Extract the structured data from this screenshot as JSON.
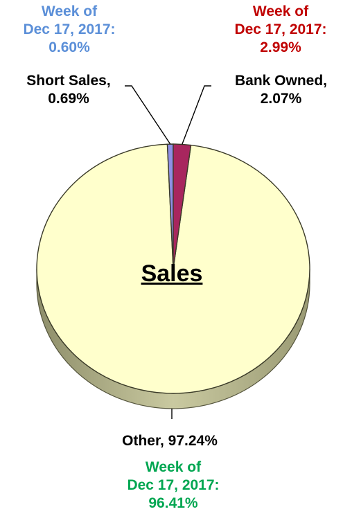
{
  "chart_data": {
    "type": "pie",
    "title": "Sales",
    "slices": [
      {
        "label": "Short Sales",
        "value": 0.69,
        "value_text": "0.69%",
        "color": "#8f8fe6",
        "week_label": "Week of",
        "week_date": "Dec 17, 2017:",
        "week_value": 0.6,
        "week_value_text": "0.60%",
        "week_color": "#5b8fd8"
      },
      {
        "label": "Bank Owned",
        "value": 2.07,
        "value_text": "2.07%",
        "color": "#a8265e",
        "week_label": "Week of",
        "week_date": "Dec 17, 2017:",
        "week_value": 2.99,
        "week_value_text": "2.99%",
        "week_color": "#c00000"
      },
      {
        "label": "Other",
        "value": 97.24,
        "value_text": "97.24%",
        "color": "#ffffcc",
        "week_label": "Week of",
        "week_date": "Dec 17, 2017:",
        "week_value": 96.41,
        "week_value_text": "96.41%",
        "week_color": "#00a651"
      }
    ]
  },
  "labels": {
    "short_line": "Short Sales,",
    "bank_line": "Bank Owned,",
    "other_line": "Other, 97.24%"
  }
}
